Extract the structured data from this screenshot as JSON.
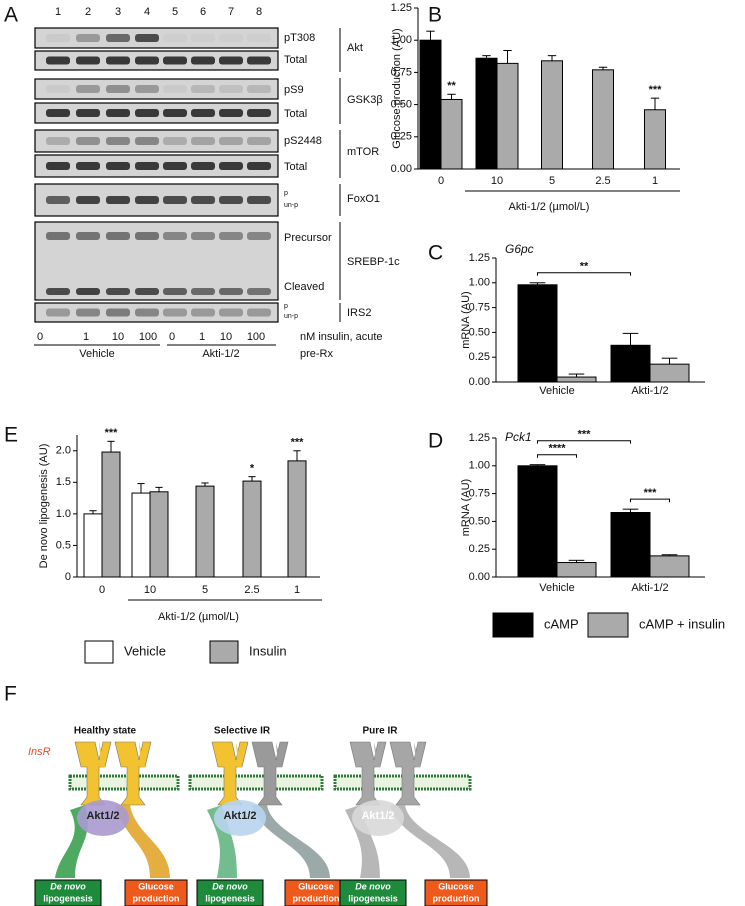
{
  "panel_labels": [
    "A",
    "B",
    "C",
    "D",
    "E",
    "F"
  ],
  "blot": {
    "lanes": [
      "1",
      "2",
      "3",
      "4",
      "5",
      "6",
      "7",
      "8"
    ],
    "rows": [
      {
        "labels": [
          "pT308",
          "Total"
        ],
        "protein": "Akt"
      },
      {
        "labels": [
          "pS9",
          "Total"
        ],
        "protein": "GSK3β"
      },
      {
        "labels": [
          "pS2448",
          "Total"
        ],
        "protein": "mTOR"
      },
      {
        "labels": [
          "p",
          "un-p"
        ],
        "protein": "FoxO1"
      },
      {
        "labels": [
          "Precursor",
          "Cleaved"
        ],
        "protein": "SREBP-1c"
      },
      {
        "labels": [
          "p",
          "un-p"
        ],
        "protein": "IRS2"
      }
    ],
    "doses": [
      "0",
      "1",
      "10",
      "100",
      "0",
      "1",
      "10",
      "100"
    ],
    "dose_label": "nM insulin, acute",
    "groups": [
      "Vehicle",
      "Akti-1/2"
    ],
    "group_label": "pre-Rx"
  },
  "chart_data": [
    {
      "type": "bar",
      "ylabel": "Glucose production (AU)",
      "xlabel": "Akti-1/2 (µmol/L)",
      "categories": [
        "0",
        "10",
        "5",
        "2.5",
        "1"
      ],
      "series": [
        {
          "color": "#000000",
          "values": [
            1.0,
            0.86,
            null,
            null,
            null
          ],
          "errors": [
            0.07,
            0.02,
            null,
            null,
            null
          ]
        },
        {
          "color": "#aaaaaa",
          "values": [
            0.54,
            0.82,
            0.84,
            0.77,
            0.46
          ],
          "errors": [
            0.04,
            0.1,
            0.04,
            0.02,
            0.09
          ],
          "significance": [
            "**",
            null,
            null,
            null,
            "***"
          ]
        }
      ],
      "ylim": [
        0,
        1.25
      ],
      "yticks": [
        {
          "value": 0,
          "label": "0.00"
        },
        {
          "value": 0.25,
          "label": "0.25"
        },
        {
          "value": 0.5,
          "label": "0.50"
        },
        {
          "value": 0.75,
          "label": "0.75"
        },
        {
          "value": 1,
          "label": "1.00"
        },
        {
          "value": 1.25,
          "label": "1.25"
        }
      ]
    },
    {
      "type": "bar",
      "title": "G6pc",
      "ylabel": "mRNA (AU)",
      "categories": [
        "Vehicle",
        "Akti-1/2"
      ],
      "series": [
        {
          "color": "#000000",
          "values": [
            0.98,
            0.37
          ],
          "errors": [
            0.02,
            0.12
          ]
        },
        {
          "color": "#aaaaaa",
          "values": [
            0.05,
            0.18
          ],
          "errors": [
            0.03,
            0.06
          ]
        }
      ],
      "brackets": [
        {
          "label": "**",
          "from": [
            0,
            0
          ],
          "to": [
            1,
            0
          ]
        }
      ],
      "ylim": [
        0,
        1.25
      ],
      "yticks": [
        {
          "value": 0,
          "label": "0.00"
        },
        {
          "value": 0.25,
          "label": "0.25"
        },
        {
          "value": 0.5,
          "label": "0.50"
        },
        {
          "value": 0.75,
          "label": "0.75"
        },
        {
          "value": 1,
          "label": "1.00"
        },
        {
          "value": 1.25,
          "label": "1.25"
        }
      ]
    },
    {
      "type": "bar",
      "title": "Pck1",
      "ylabel": "mRNA (AU)",
      "categories": [
        "Vehicle",
        "Akti-1/2"
      ],
      "series": [
        {
          "name": "cAMP",
          "color": "#000000",
          "values": [
            1.0,
            0.58
          ],
          "errors": [
            0.01,
            0.03
          ]
        },
        {
          "name": "cAMP + insulin",
          "color": "#aaaaaa",
          "values": [
            0.13,
            0.19
          ],
          "errors": [
            0.02,
            0.01
          ]
        }
      ],
      "brackets": [
        {
          "label": "****",
          "from": [
            0,
            0
          ],
          "to": [
            0,
            1
          ]
        },
        {
          "label": "***",
          "from": [
            0,
            0
          ],
          "to": [
            1,
            0
          ]
        },
        {
          "label": "***",
          "from": [
            1,
            0
          ],
          "to": [
            1,
            1
          ]
        }
      ],
      "legend": true,
      "ylim": [
        0,
        1.25
      ],
      "yticks": [
        {
          "value": 0,
          "label": "0.00"
        },
        {
          "value": 0.25,
          "label": "0.25"
        },
        {
          "value": 0.5,
          "label": "0.50"
        },
        {
          "value": 0.75,
          "label": "0.75"
        },
        {
          "value": 1,
          "label": "1.00"
        },
        {
          "value": 1.25,
          "label": "1.25"
        }
      ]
    },
    {
      "type": "bar",
      "ylabel": "De novo lipogenesis (AU)",
      "xlabel": "Akti-1/2 (µmol/L)",
      "categories": [
        "0",
        "10",
        "5",
        "2.5",
        "1"
      ],
      "series": [
        {
          "name": "Vehicle",
          "color": "#ffffff",
          "values": [
            1.0,
            1.33,
            null,
            null,
            null
          ],
          "errors": [
            0.05,
            0.15,
            null,
            null,
            null
          ]
        },
        {
          "name": "Insulin",
          "color": "#aaaaaa",
          "values": [
            1.98,
            1.35,
            1.44,
            1.52,
            1.84
          ],
          "errors": [
            0.17,
            0.07,
            0.05,
            0.07,
            0.16
          ],
          "significance": [
            "***",
            null,
            null,
            "*",
            "***"
          ]
        }
      ],
      "legend": true,
      "ylim": [
        0,
        2.25
      ],
      "yticks": [
        0,
        0.5,
        {
          "value": 1,
          "label": "1.0"
        },
        1.5,
        {
          "value": 2,
          "label": "2.0"
        }
      ]
    }
  ],
  "diagram": {
    "receptor_label": "InsR",
    "states": [
      {
        "title": "Healthy state",
        "akt": "Akt1/2",
        "lipogenesis": [
          "De novo",
          "lipogenesis"
        ],
        "glucose": [
          "Glucose",
          "production"
        ]
      },
      {
        "title": "Selective IR",
        "akt": "Akt1/2",
        "lipogenesis": [
          "De novo",
          "lipogenesis"
        ],
        "glucose": [
          "Glucose",
          "production"
        ]
      },
      {
        "title": "Pure IR",
        "akt": "Akt1/2",
        "lipogenesis": [
          "De novo",
          "lipogenesis"
        ],
        "glucose": [
          "Glucose",
          "production"
        ]
      }
    ]
  }
}
